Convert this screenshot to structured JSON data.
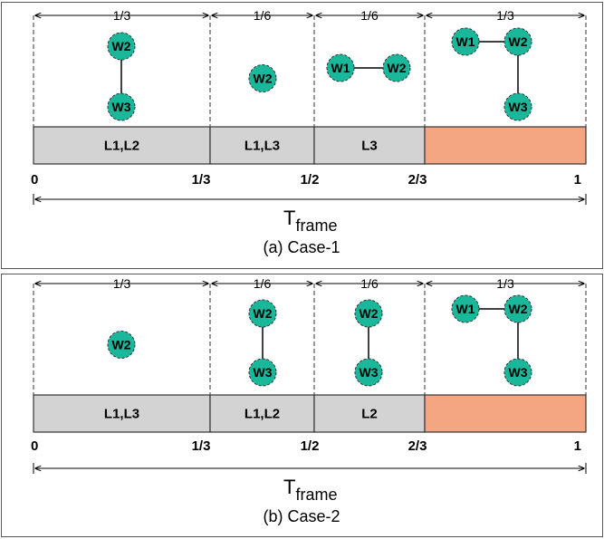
{
  "colors": {
    "node_fill": "#1ab79a",
    "bar_fill": "#d3d3d3",
    "highlight_fill": "#f4a582",
    "line": "#000000"
  },
  "panels": [
    {
      "caption": "(a) Case-1",
      "frame_label": {
        "main": "T",
        "sub": "frame"
      },
      "fractions": [
        "1/3",
        "1/6",
        "1/6",
        "1/3"
      ],
      "ticks": [
        "0",
        "1/3",
        "1/2",
        "2/3",
        "1"
      ],
      "blocks": [
        "L1,L2",
        "L1,L3",
        "L3",
        ""
      ],
      "graphs": [
        {
          "nodes": [
            "W2",
            "W3"
          ],
          "layout": "vertical"
        },
        {
          "nodes": [
            "W2"
          ],
          "layout": "single"
        },
        {
          "nodes": [
            "W1",
            "W2"
          ],
          "layout": "horizontal"
        },
        {
          "nodes": [
            "W1",
            "W2",
            "W3"
          ],
          "layout": "corner"
        }
      ]
    },
    {
      "caption": "(b) Case-2",
      "frame_label": {
        "main": "T",
        "sub": "frame"
      },
      "fractions": [
        "1/3",
        "1/6",
        "1/6",
        "1/3"
      ],
      "ticks": [
        "0",
        "1/3",
        "1/2",
        "2/3",
        "1"
      ],
      "blocks": [
        "L1,L3",
        "L1,L2",
        "L2",
        ""
      ],
      "graphs": [
        {
          "nodes": [
            "W2"
          ],
          "layout": "single"
        },
        {
          "nodes": [
            "W2",
            "W3"
          ],
          "layout": "vertical"
        },
        {
          "nodes": [
            "W2",
            "W3"
          ],
          "layout": "vertical"
        },
        {
          "nodes": [
            "W1",
            "W2",
            "W3"
          ],
          "layout": "corner"
        }
      ]
    }
  ]
}
